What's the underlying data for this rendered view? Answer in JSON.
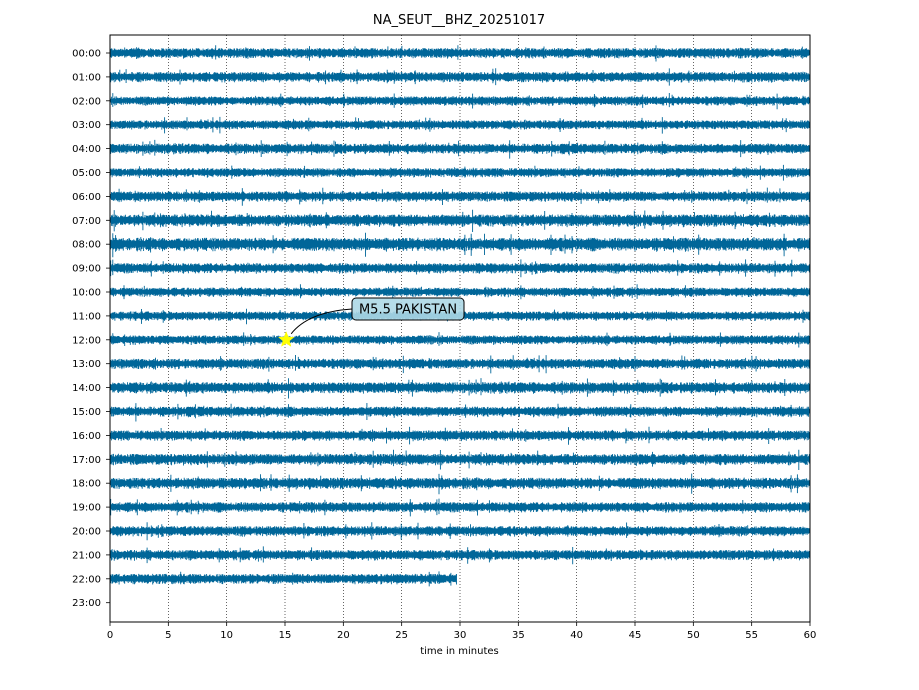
{
  "chart_data": {
    "type": "line",
    "title": "NA_SEUT__BHZ_20251017",
    "xlabel": "time in minutes",
    "ylabel": "",
    "xlim": [
      0,
      60
    ],
    "x_ticks": [
      0,
      5,
      10,
      15,
      20,
      25,
      30,
      35,
      40,
      45,
      50,
      55,
      60
    ],
    "y_ticks": [
      "00:00",
      "01:00",
      "02:00",
      "03:00",
      "04:00",
      "05:00",
      "06:00",
      "07:00",
      "08:00",
      "09:00",
      "10:00",
      "11:00",
      "12:00",
      "13:00",
      "14:00",
      "15:00",
      "16:00",
      "17:00",
      "18:00",
      "19:00",
      "20:00",
      "21:00",
      "22:00",
      "23:00"
    ],
    "grid": "vertical dotted",
    "trace_color": "#006699",
    "traces": [
      {
        "hour": "00:00",
        "end_minute": 60,
        "amplitude": 0.5
      },
      {
        "hour": "01:00",
        "end_minute": 60,
        "amplitude": 0.5
      },
      {
        "hour": "02:00",
        "end_minute": 60,
        "amplitude": 0.45
      },
      {
        "hour": "03:00",
        "end_minute": 60,
        "amplitude": 0.45
      },
      {
        "hour": "04:00",
        "end_minute": 60,
        "amplitude": 0.5
      },
      {
        "hour": "05:00",
        "end_minute": 60,
        "amplitude": 0.45
      },
      {
        "hour": "06:00",
        "end_minute": 60,
        "amplitude": 0.5
      },
      {
        "hour": "07:00",
        "end_minute": 60,
        "amplitude": 0.6
      },
      {
        "hour": "08:00",
        "end_minute": 60,
        "amplitude": 0.65
      },
      {
        "hour": "09:00",
        "end_minute": 60,
        "amplitude": 0.5
      },
      {
        "hour": "10:00",
        "end_minute": 60,
        "amplitude": 0.45
      },
      {
        "hour": "11:00",
        "end_minute": 60,
        "amplitude": 0.45
      },
      {
        "hour": "12:00",
        "end_minute": 60,
        "amplitude": 0.45
      },
      {
        "hour": "13:00",
        "end_minute": 60,
        "amplitude": 0.5
      },
      {
        "hour": "14:00",
        "end_minute": 60,
        "amplitude": 0.55
      },
      {
        "hour": "15:00",
        "end_minute": 60,
        "amplitude": 0.5
      },
      {
        "hour": "16:00",
        "end_minute": 60,
        "amplitude": 0.5
      },
      {
        "hour": "17:00",
        "end_minute": 60,
        "amplitude": 0.55
      },
      {
        "hour": "18:00",
        "end_minute": 60,
        "amplitude": 0.55
      },
      {
        "hour": "19:00",
        "end_minute": 60,
        "amplitude": 0.5
      },
      {
        "hour": "20:00",
        "end_minute": 60,
        "amplitude": 0.5
      },
      {
        "hour": "21:00",
        "end_minute": 60,
        "amplitude": 0.5
      },
      {
        "hour": "22:00",
        "end_minute": 29.7,
        "amplitude": 0.5
      }
    ],
    "events": [
      {
        "label": "M5.5 PAKISTAN",
        "hour": "12:00",
        "minute": 15.1,
        "marker": "star",
        "marker_color": "#ffff00",
        "box_color": "#add8e6"
      }
    ]
  }
}
